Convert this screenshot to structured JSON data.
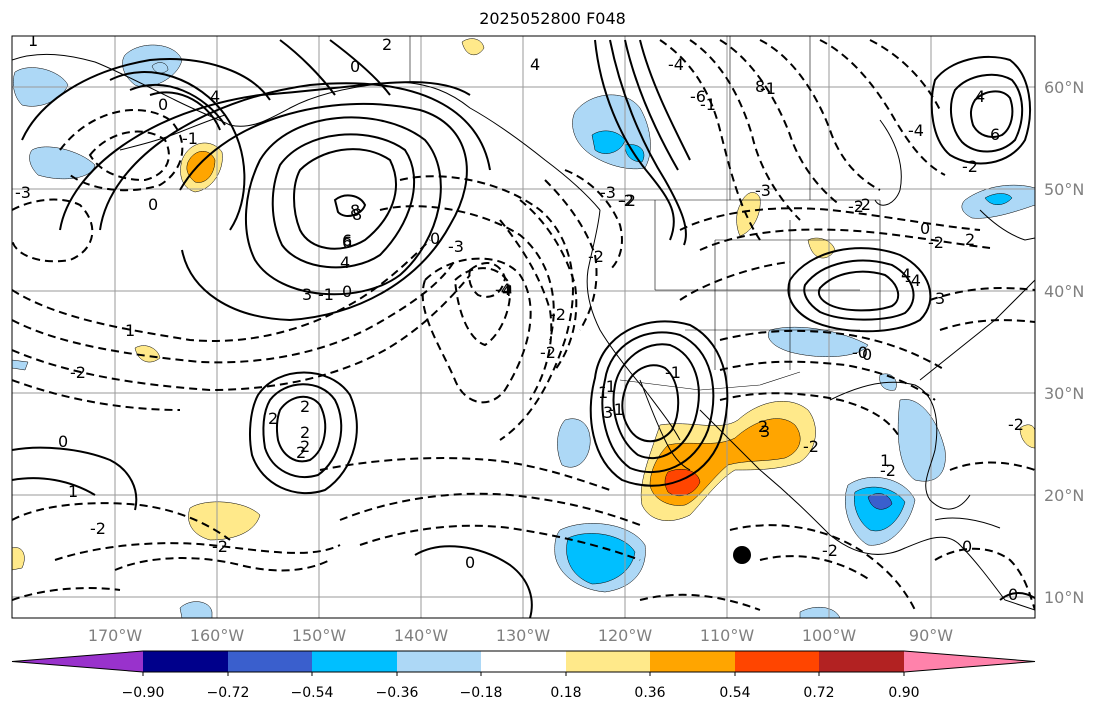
{
  "title": "2025052800 F048",
  "lon_labels": [
    "170°W",
    "160°W",
    "150°W",
    "140°W",
    "130°W",
    "120°W",
    "110°W",
    "100°W",
    "90°W"
  ],
  "lat_labels": [
    "60°N",
    "50°N",
    "40°N",
    "30°N",
    "20°N",
    "10°N"
  ],
  "colorbar": {
    "ticks": [
      "−0.90",
      "−0.72",
      "−0.54",
      "−0.36",
      "−0.18",
      "0.18",
      "0.36",
      "0.54",
      "0.72",
      "0.90"
    ],
    "colors": [
      "#9932cc",
      "#00008b",
      "#3a5fcd",
      "#00bfff",
      "#add8f6",
      "#ffffff",
      "#ffe98a",
      "#ffa500",
      "#ff4500",
      "#b22222",
      "#ff82ab"
    ]
  },
  "contour_labels": [
    "1",
    "4",
    "0",
    "4",
    "6",
    "8",
    "2",
    "3",
    "4",
    "-1",
    "0",
    "1",
    "6",
    "8",
    "-6",
    "-4",
    "-2",
    "0",
    "-1",
    "-3",
    "8",
    "6",
    "4",
    "3",
    "3",
    "2",
    "1",
    "-3",
    "-3",
    "-4",
    "-1",
    "-2",
    "0",
    "2",
    "-2",
    "-2",
    "1",
    "3",
    "-2",
    "-4",
    "-2",
    "0",
    "-2",
    "-1",
    "1",
    "0",
    "-2",
    "-2",
    "2",
    "2",
    "-0",
    "-1",
    "-4",
    "-3",
    "-2",
    "-2",
    "-2",
    "0",
    "0",
    "-2",
    "0",
    "2",
    "4",
    "2",
    "-1",
    "2",
    "0",
    "4",
    "-2",
    "-2",
    "0",
    "-1",
    "-2"
  ],
  "marker": "black-dot"
}
